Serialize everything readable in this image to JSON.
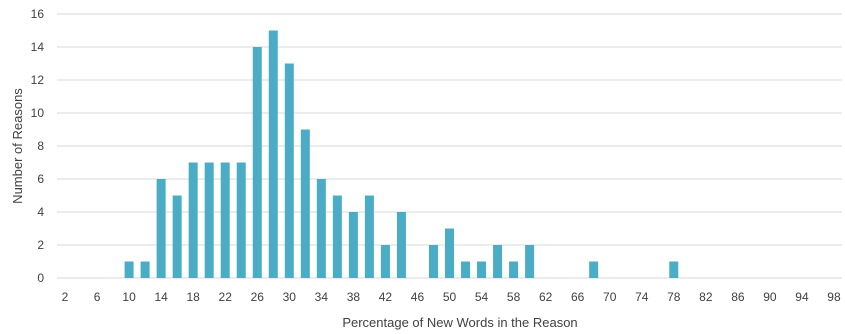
{
  "chart_data": {
    "type": "bar",
    "title": "",
    "xlabel": "Percentage of New Words in the Reason",
    "ylabel": "Number of Reasons",
    "ylim": [
      0,
      16
    ],
    "yticks": [
      0,
      2,
      4,
      6,
      8,
      10,
      12,
      14,
      16
    ],
    "xlim": [
      1,
      99
    ],
    "xticks": [
      2,
      6,
      10,
      14,
      18,
      22,
      26,
      30,
      34,
      38,
      42,
      46,
      50,
      54,
      58,
      62,
      66,
      70,
      74,
      78,
      82,
      86,
      90,
      94,
      98
    ],
    "grid": true,
    "bar_color": "#4bacc6",
    "x": [
      10,
      12,
      14,
      16,
      18,
      20,
      22,
      24,
      26,
      28,
      30,
      32,
      34,
      36,
      38,
      40,
      42,
      44,
      48,
      50,
      52,
      54,
      56,
      58,
      60,
      68,
      78
    ],
    "values": [
      1,
      1,
      6,
      5,
      7,
      7,
      7,
      7,
      14,
      15,
      13,
      9,
      6,
      5,
      4,
      5,
      2,
      4,
      2,
      3,
      1,
      1,
      2,
      1,
      2,
      1,
      1
    ]
  }
}
